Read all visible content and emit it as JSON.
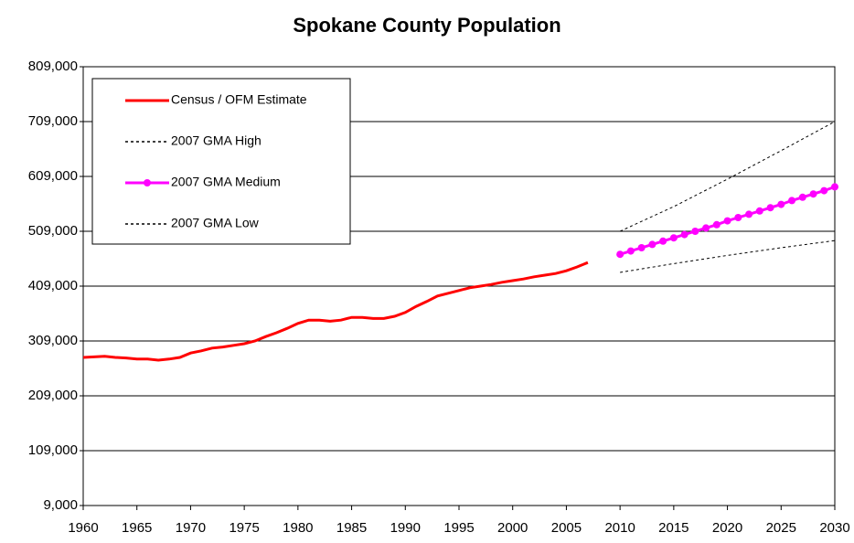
{
  "chart_data": {
    "type": "line",
    "title": "Spokane County Population",
    "series": [
      {
        "name": "Census / OFM Estimate",
        "color": "#ff0000",
        "style": "solid",
        "markers": false,
        "x": [
          1960,
          1961,
          1962,
          1963,
          1964,
          1965,
          1966,
          1967,
          1968,
          1969,
          1970,
          1971,
          1972,
          1973,
          1974,
          1975,
          1976,
          1977,
          1978,
          1979,
          1980,
          1981,
          1982,
          1983,
          1984,
          1985,
          1986,
          1987,
          1988,
          1989,
          1990,
          1991,
          1992,
          1993,
          1994,
          1995,
          1996,
          1997,
          1998,
          1999,
          2000,
          2001,
          2002,
          2003,
          2004,
          2005,
          2006,
          2007
        ],
        "values": [
          279000,
          280000,
          281000,
          279000,
          278000,
          276000,
          276000,
          274000,
          276000,
          279000,
          287000,
          291000,
          296000,
          298000,
          301000,
          304000,
          309000,
          317000,
          324000,
          332000,
          341000,
          347000,
          347000,
          345000,
          347000,
          352000,
          352000,
          350000,
          350000,
          354000,
          361000,
          372000,
          381000,
          391000,
          396000,
          401000,
          406000,
          409000,
          412000,
          416000,
          419000,
          422000,
          426000,
          429000,
          432000,
          437000,
          444000,
          452000
        ]
      },
      {
        "name": "2007 GMA High",
        "color": "#000000",
        "style": "dotted",
        "markers": false,
        "x": [
          2010,
          2015,
          2020,
          2025,
          2030
        ],
        "values": [
          509000,
          554000,
          604000,
          656000,
          709000
        ]
      },
      {
        "name": "2007 GMA Medium",
        "color": "#ff00ff",
        "style": "solid",
        "markers": true,
        "x": [
          2010,
          2011,
          2012,
          2013,
          2014,
          2015,
          2016,
          2017,
          2018,
          2019,
          2020,
          2021,
          2022,
          2023,
          2024,
          2025,
          2026,
          2027,
          2028,
          2029,
          2030
        ],
        "values": [
          467000,
          473000,
          479000,
          485000,
          491000,
          497000,
          503000,
          509000,
          515000,
          521000,
          528000,
          534000,
          540000,
          546000,
          552000,
          558000,
          565000,
          571000,
          577000,
          583000,
          590000
        ]
      },
      {
        "name": "2007 GMA Low",
        "color": "#000000",
        "style": "dotted",
        "markers": false,
        "x": [
          2010,
          2015,
          2020,
          2025,
          2030
        ],
        "values": [
          434000,
          450000,
          465000,
          479000,
          492000
        ]
      }
    ],
    "xlim": [
      1960,
      2030
    ],
    "xticks": [
      1960,
      1965,
      1970,
      1975,
      1980,
      1985,
      1990,
      1995,
      2000,
      2005,
      2010,
      2015,
      2020,
      2025,
      2030
    ],
    "ylim": [
      9000,
      809000
    ],
    "yticks": [
      {
        "value": 9000,
        "label": "9,000"
      },
      {
        "value": 109000,
        "label": "109,000"
      },
      {
        "value": 209000,
        "label": "209,000"
      },
      {
        "value": 309000,
        "label": "309,000"
      },
      {
        "value": 409000,
        "label": "409,000"
      },
      {
        "value": 509000,
        "label": "509,000"
      },
      {
        "value": 609000,
        "label": "609,000"
      },
      {
        "value": 709000,
        "label": "709,000"
      },
      {
        "value": 809000,
        "label": "809,000"
      }
    ],
    "grid": true,
    "legend": "top-left"
  }
}
